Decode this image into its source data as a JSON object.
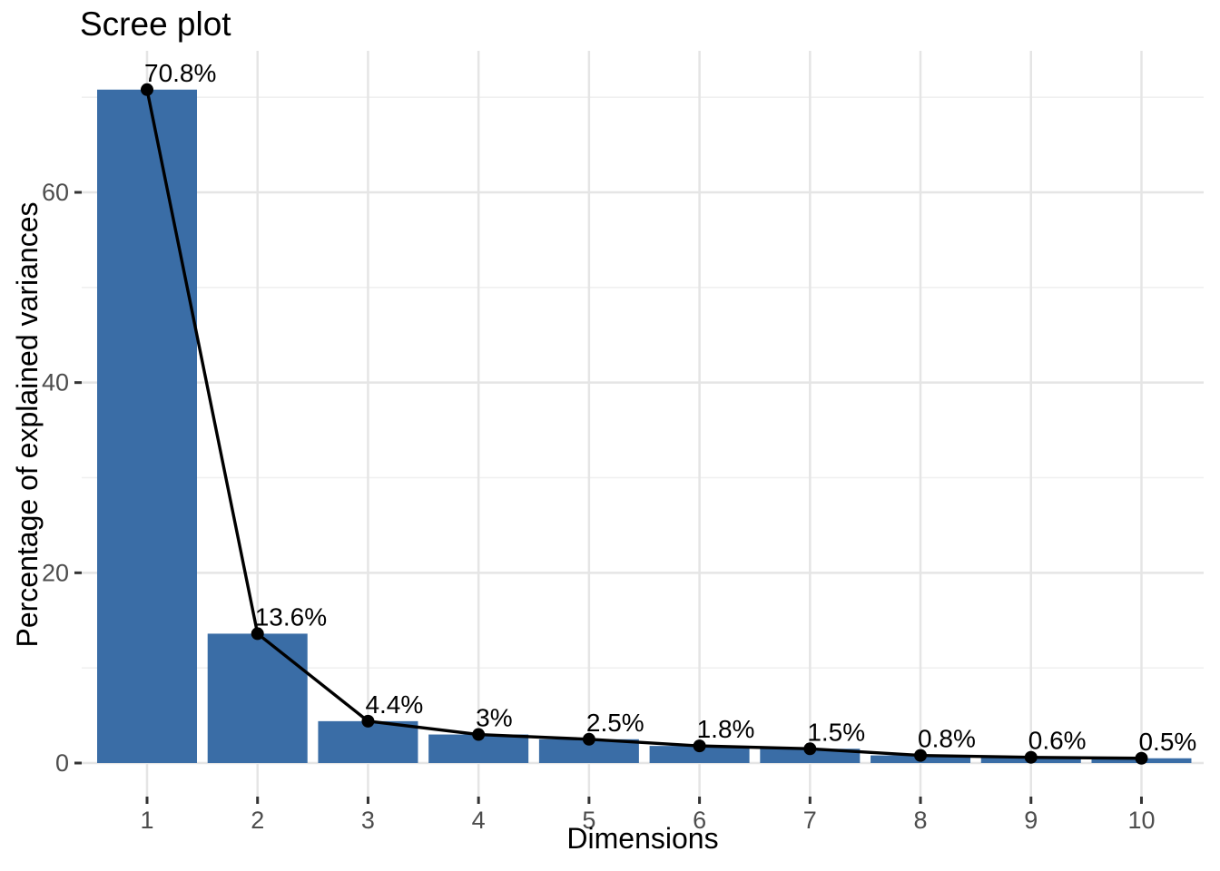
{
  "chart_data": {
    "type": "bar",
    "overlay": "line-with-points",
    "title": "Scree plot",
    "xlabel": "Dimensions",
    "ylabel": "Percentage of explained variances",
    "categories": [
      "1",
      "2",
      "3",
      "4",
      "5",
      "6",
      "7",
      "8",
      "9",
      "10"
    ],
    "values": [
      70.8,
      13.6,
      4.4,
      3,
      2.5,
      1.8,
      1.5,
      0.8,
      0.6,
      0.5
    ],
    "point_labels": [
      "70.8%",
      "13.6%",
      "4.4%",
      "3%",
      "2.5%",
      "1.8%",
      "1.5%",
      "0.8%",
      "0.6%",
      "0.5%"
    ],
    "ylim": [
      0,
      74
    ],
    "y_major_ticks": [
      0,
      20,
      40,
      60
    ],
    "y_minor_gridlines": [
      10,
      30,
      50,
      70
    ],
    "grid": "horizontal major+minor gridlines, vertical gridlines at category centers, white background",
    "legend": "none",
    "colors": {
      "bar": "#3A6DA6",
      "line": "#000000",
      "point": "#000000",
      "label_text": "#000000",
      "grid_major": "#E5E5E5",
      "grid_minor": "#F0F0F0",
      "tick_text": "#4D4D4D",
      "tick_mark": "#333333",
      "background": "#FFFFFF"
    }
  }
}
